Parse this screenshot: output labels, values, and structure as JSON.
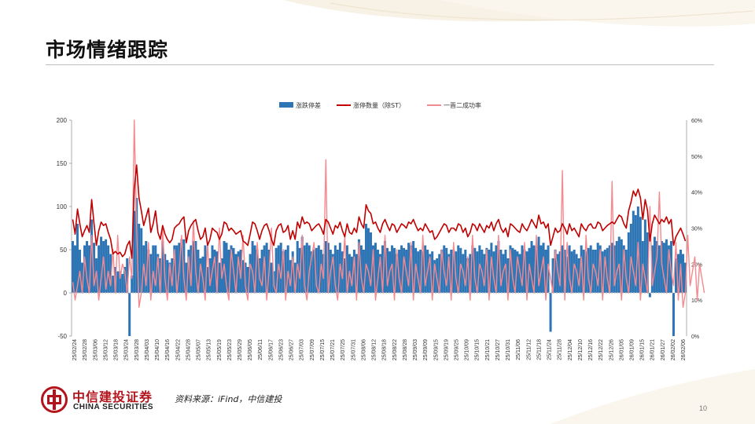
{
  "page": {
    "title": "市场情绪跟踪",
    "source": "资料来源：iFind，中信建投",
    "page_number": "10",
    "brand_cn": "中信建投证券",
    "brand_en": "CHINA SECURITIES",
    "logo_icon": "china-securities-logo-icon",
    "brand_color": "#b3141c"
  },
  "chart_data": {
    "type": "bar",
    "legend_position": "top",
    "grid": false,
    "colors": {
      "bars": "#2e75b6",
      "limit_up": "#c00000",
      "promotion": "#f4898f"
    },
    "y_left": {
      "min": -50,
      "max": 200,
      "ticks": [
        -50,
        0,
        50,
        100,
        150,
        200
      ]
    },
    "y_right": {
      "min": 0,
      "max": 60,
      "ticks": [
        "0%",
        "10%",
        "20%",
        "30%",
        "40%",
        "50%",
        "60%"
      ]
    },
    "x_tick_labels": [
      "25/02/24",
      "25/02/28",
      "25/03/06",
      "25/03/12",
      "25/03/18",
      "25/03/24",
      "25/03/28",
      "25/04/03",
      "25/04/10",
      "25/04/16",
      "25/04/22",
      "25/04/28",
      "25/05/07",
      "25/05/13",
      "25/05/19",
      "25/05/23",
      "25/05/29",
      "25/06/05",
      "25/06/11",
      "25/06/17",
      "25/06/23",
      "25/06/27",
      "25/07/03",
      "25/07/09",
      "25/07/15",
      "25/07/21",
      "25/07/25",
      "25/07/31",
      "25/08/06",
      "25/08/12",
      "25/08/18",
      "25/08/22",
      "25/08/28",
      "25/09/03",
      "25/09/09",
      "25/09/15",
      "25/09/19",
      "25/09/25",
      "25/10/09",
      "25/10/15",
      "25/10/21",
      "25/10/27",
      "25/10/31",
      "25/11/06",
      "25/11/12",
      "25/11/18",
      "25/11/24",
      "25/11/28",
      "25/12/04",
      "25/12/10",
      "25/12/16",
      "25/12/22",
      "25/12/26",
      "26/01/05",
      "26/01/09",
      "26/01/15",
      "26/01/21",
      "26/01/27",
      "26/02/02",
      "26/02/06"
    ],
    "series": [
      {
        "name": "涨跌停差",
        "kind": "bar",
        "axis": "left",
        "values": [
          60,
          55,
          80,
          50,
          35,
          55,
          60,
          55,
          85,
          58,
          40,
          55,
          65,
          60,
          62,
          55,
          45,
          20,
          30,
          25,
          25,
          22,
          30,
          40,
          -50,
          20,
          95,
          110,
          80,
          75,
          55,
          60,
          50,
          45,
          55,
          55,
          45,
          40,
          60,
          45,
          38,
          35,
          40,
          55,
          55,
          58,
          62,
          62,
          35,
          50,
          55,
          60,
          60,
          50,
          40,
          42,
          55,
          30,
          40,
          55,
          50,
          48,
          35,
          40,
          60,
          58,
          50,
          55,
          52,
          45,
          48,
          50,
          38,
          35,
          30,
          45,
          60,
          55,
          50,
          40,
          50,
          55,
          58,
          50,
          35,
          25,
          52,
          55,
          58,
          48,
          50,
          55,
          38,
          48,
          35,
          60,
          52,
          65,
          55,
          58,
          55,
          48,
          50,
          52,
          55,
          50,
          45,
          60,
          58,
          50,
          45,
          55,
          50,
          58,
          48,
          40,
          55,
          45,
          42,
          50,
          45,
          62,
          55,
          50,
          80,
          75,
          70,
          55,
          58,
          50,
          45,
          55,
          60,
          52,
          48,
          55,
          52,
          45,
          50,
          55,
          52,
          50,
          58,
          55,
          60,
          52,
          48,
          50,
          48,
          55,
          50,
          45,
          48,
          38,
          40,
          45,
          50,
          55,
          52,
          45,
          50,
          50,
          48,
          55,
          52,
          45,
          50,
          40,
          45,
          55,
          52,
          48,
          55,
          50,
          45,
          52,
          50,
          58,
          48,
          55,
          60,
          50,
          45,
          50,
          40,
          55,
          52,
          50,
          48,
          45,
          55,
          50,
          48,
          52,
          60,
          55,
          50,
          65,
          55,
          58,
          50,
          55,
          -45,
          40,
          50,
          45,
          48,
          55,
          50,
          42,
          55,
          48,
          50,
          45,
          40,
          55,
          50,
          48,
          52,
          55,
          50,
          50,
          58,
          55,
          48,
          50,
          52,
          55,
          58,
          55,
          60,
          65,
          62,
          55,
          50,
          70,
          80,
          95,
          90,
          100,
          88,
          60,
          85,
          70,
          -5,
          55,
          65,
          60,
          55,
          60,
          58,
          62,
          55,
          60,
          -50,
          40,
          45,
          50,
          45,
          35
        ]
      },
      {
        "name": "涨停数量（除ST）",
        "kind": "line",
        "axis": "left",
        "values": [
          85,
          68,
          97,
          80,
          65,
          72,
          78,
          70,
          108,
          80,
          55,
          72,
          82,
          78,
          80,
          70,
          62,
          45,
          48,
          45,
          47,
          42,
          45,
          55,
          60,
          40,
          120,
          148,
          110,
          95,
          78,
          88,
          98,
          70,
          80,
          95,
          70,
          62,
          78,
          68,
          62,
          58,
          62,
          75,
          78,
          80,
          85,
          88,
          58,
          72,
          78,
          82,
          85,
          72,
          62,
          65,
          75,
          55,
          62,
          75,
          72,
          70,
          62,
          68,
          82,
          80,
          72,
          75,
          72,
          68,
          70,
          72,
          60,
          58,
          55,
          68,
          82,
          80,
          72,
          62,
          72,
          78,
          80,
          72,
          62,
          55,
          72,
          78,
          80,
          70,
          72,
          78,
          62,
          72,
          62,
          82,
          75,
          88,
          80,
          82,
          80,
          72,
          75,
          78,
          80,
          75,
          68,
          85,
          82,
          75,
          68,
          78,
          75,
          82,
          72,
          65,
          80,
          70,
          68,
          75,
          70,
          88,
          80,
          75,
          102,
          95,
          92,
          80,
          82,
          75,
          70,
          80,
          85,
          78,
          72,
          80,
          78,
          70,
          75,
          80,
          78,
          75,
          82,
          80,
          85,
          78,
          72,
          75,
          72,
          80,
          75,
          70,
          72,
          62,
          65,
          70,
          75,
          80,
          78,
          70,
          75,
          75,
          72,
          80,
          78,
          70,
          75,
          65,
          70,
          80,
          78,
          72,
          80,
          75,
          70,
          78,
          75,
          82,
          72,
          80,
          85,
          75,
          70,
          75,
          65,
          80,
          78,
          75,
          72,
          70,
          80,
          75,
          72,
          78,
          85,
          80,
          75,
          90,
          80,
          82,
          75,
          80,
          55,
          65,
          75,
          70,
          72,
          80,
          75,
          68,
          80,
          72,
          75,
          70,
          65,
          80,
          75,
          72,
          78,
          80,
          75,
          75,
          82,
          80,
          72,
          75,
          78,
          80,
          82,
          80,
          85,
          90,
          88,
          80,
          75,
          95,
          105,
          118,
          112,
          120,
          110,
          85,
          108,
          95,
          60,
          80,
          90,
          85,
          80,
          85,
          82,
          88,
          80,
          85,
          55,
          65,
          70,
          75,
          68,
          60
        ]
      },
      {
        "name": "一晋二成功率",
        "kind": "line",
        "axis": "right",
        "values": [
          15,
          10,
          14,
          18,
          12,
          22,
          16,
          12,
          28,
          14,
          18,
          10,
          16,
          22,
          13,
          18,
          14,
          24,
          12,
          28,
          16,
          20,
          18,
          12,
          22,
          16,
          60,
          30,
          8,
          12,
          20,
          14,
          26,
          10,
          18,
          14,
          22,
          12,
          30,
          16,
          10,
          20,
          14,
          24,
          12,
          18,
          28,
          16,
          10,
          22,
          14,
          32,
          18,
          12,
          20,
          16,
          10,
          26,
          14,
          18,
          22,
          12,
          30,
          16,
          20,
          14,
          10,
          24,
          18,
          12,
          22,
          16,
          28,
          14,
          10,
          20,
          18,
          12,
          26,
          16,
          14,
          22,
          10,
          18,
          30,
          14,
          12,
          20,
          16,
          24,
          10,
          18,
          14,
          22,
          12,
          20,
          16,
          28,
          14,
          10,
          18,
          22,
          26,
          14,
          12,
          20,
          16,
          49,
          12,
          18,
          22,
          14,
          10,
          20,
          16,
          28,
          12,
          18,
          14,
          22,
          10,
          26,
          16,
          12,
          20,
          18,
          14,
          24,
          10,
          16,
          22,
          12,
          28,
          14,
          18,
          20,
          10,
          24,
          16,
          12,
          22,
          18,
          14,
          26,
          10,
          20,
          16,
          12,
          28,
          14,
          18,
          22,
          10,
          20,
          16,
          12,
          24,
          18,
          14,
          22,
          10,
          26,
          16,
          12,
          20,
          18,
          14,
          22,
          10,
          28,
          16,
          12,
          20,
          18,
          14,
          24,
          10,
          22,
          16,
          12,
          28,
          14,
          18,
          20,
          10,
          24,
          16,
          12,
          22,
          18,
          14,
          26,
          10,
          20,
          16,
          12,
          28,
          14,
          18,
          22,
          10,
          20,
          16,
          12,
          24,
          18,
          14,
          46,
          10,
          26,
          16,
          12,
          20,
          18,
          14,
          22,
          10,
          28,
          16,
          12,
          20,
          18,
          14,
          24,
          10,
          22,
          16,
          12,
          43,
          14,
          18,
          20,
          10,
          24,
          16,
          12,
          22,
          18,
          14,
          26,
          10,
          20,
          16,
          12,
          36,
          14,
          18,
          22,
          40,
          20,
          16,
          12,
          24,
          18,
          14,
          26,
          10,
          20,
          8,
          12,
          28,
          14,
          18,
          22,
          10,
          20,
          16,
          12
        ]
      }
    ]
  }
}
